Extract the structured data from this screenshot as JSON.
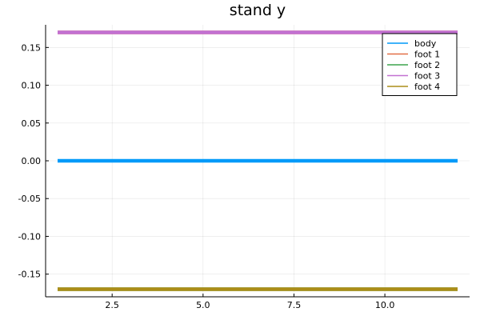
{
  "chart_data": {
    "type": "line",
    "title": "stand y",
    "xlabel": "",
    "ylabel": "",
    "xlim": [
      0.67,
      12.33
    ],
    "ylim": [
      -0.18,
      0.18
    ],
    "xticks": [
      2.5,
      5.0,
      7.5,
      10.0
    ],
    "xtick_labels": [
      "2.5",
      "5.0",
      "7.5",
      "10.0"
    ],
    "yticks": [
      -0.15,
      -0.1,
      -0.05,
      0.0,
      0.05,
      0.1,
      0.15
    ],
    "ytick_labels": [
      "-0.15",
      "-0.10",
      "-0.05",
      "0.00",
      "0.05",
      "0.10",
      "0.15"
    ],
    "grid": true,
    "legend_position": "top-right",
    "x": [
      1,
      2,
      3,
      4,
      5,
      6,
      7,
      8,
      9,
      10,
      11,
      12
    ],
    "series": [
      {
        "name": "body",
        "color": "#009af9",
        "values": [
          0,
          0,
          0,
          0,
          0,
          0,
          0,
          0,
          0,
          0,
          0,
          0
        ]
      },
      {
        "name": "foot 1",
        "color": "#e26f46",
        "values": [
          0.17,
          0.17,
          0.17,
          0.17,
          0.17,
          0.17,
          0.17,
          0.17,
          0.17,
          0.17,
          0.17,
          0.17
        ]
      },
      {
        "name": "foot 2",
        "color": "#3da44d",
        "values": [
          -0.17,
          -0.17,
          -0.17,
          -0.17,
          -0.17,
          -0.17,
          -0.17,
          -0.17,
          -0.17,
          -0.17,
          -0.17,
          -0.17
        ]
      },
      {
        "name": "foot 3",
        "color": "#c271d2",
        "values": [
          0.17,
          0.17,
          0.17,
          0.17,
          0.17,
          0.17,
          0.17,
          0.17,
          0.17,
          0.17,
          0.17,
          0.17
        ]
      },
      {
        "name": "foot 4",
        "color": "#ac8d18",
        "values": [
          -0.17,
          -0.17,
          -0.17,
          -0.17,
          -0.17,
          -0.17,
          -0.17,
          -0.17,
          -0.17,
          -0.17,
          -0.17,
          -0.17
        ]
      }
    ]
  }
}
